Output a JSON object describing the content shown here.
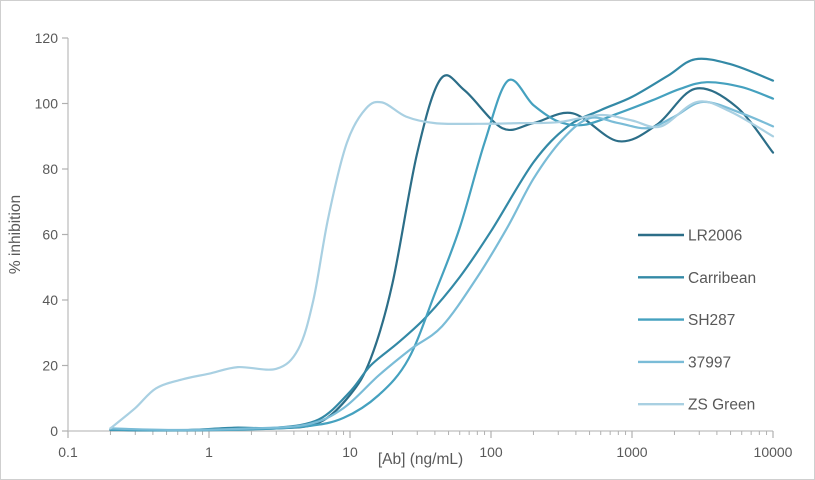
{
  "chart_data": {
    "type": "line",
    "title": "",
    "xlabel": "[Ab] (ng/mL)",
    "ylabel": "% inhibition",
    "x_scale": "log",
    "xlim": [
      0.1,
      10000
    ],
    "ylim": [
      0,
      120
    ],
    "x_ticks": [
      0.1,
      1,
      10,
      100,
      1000,
      10000
    ],
    "x_tick_labels": [
      "0.1",
      "1",
      "10",
      "100",
      "1000",
      "10000"
    ],
    "y_ticks": [
      0,
      20,
      40,
      60,
      80,
      100,
      120
    ],
    "y_tick_labels": [
      "0",
      "20",
      "40",
      "60",
      "80",
      "100",
      "120"
    ],
    "grid": false,
    "legend_position": "inside-right",
    "line_style": "smooth",
    "series": [
      {
        "name": "LR2006",
        "color": "#2c6e88",
        "points": [
          [
            0.2,
            0.3
          ],
          [
            0.6,
            0.2
          ],
          [
            1.5,
            0.8
          ],
          [
            3,
            0.8
          ],
          [
            6,
            2.5
          ],
          [
            10,
            11
          ],
          [
            14,
            22
          ],
          [
            20,
            45
          ],
          [
            30,
            85
          ],
          [
            44,
            107.5
          ],
          [
            65,
            104
          ],
          [
            120,
            92.5
          ],
          [
            200,
            94
          ],
          [
            380,
            97
          ],
          [
            800,
            88.5
          ],
          [
            1500,
            93.5
          ],
          [
            2800,
            104.5
          ],
          [
            5500,
            99
          ],
          [
            10000,
            85
          ]
        ]
      },
      {
        "name": "Carribean",
        "color": "#3389a6",
        "points": [
          [
            0.2,
            0.4
          ],
          [
            0.6,
            0.2
          ],
          [
            1.5,
            1
          ],
          [
            3,
            1
          ],
          [
            6,
            3.5
          ],
          [
            10,
            12
          ],
          [
            14,
            20
          ],
          [
            22,
            27
          ],
          [
            35,
            35
          ],
          [
            60,
            47
          ],
          [
            100,
            61
          ],
          [
            200,
            82
          ],
          [
            350,
            93
          ],
          [
            600,
            98
          ],
          [
            1000,
            102
          ],
          [
            1800,
            108.5
          ],
          [
            2800,
            113.5
          ],
          [
            5000,
            112
          ],
          [
            10000,
            107
          ]
        ]
      },
      {
        "name": "SH287",
        "color": "#45a1bf",
        "points": [
          [
            0.2,
            0.4
          ],
          [
            0.6,
            0.2
          ],
          [
            2,
            0.5
          ],
          [
            5,
            1.5
          ],
          [
            9,
            4
          ],
          [
            16,
            11
          ],
          [
            26,
            22
          ],
          [
            40,
            42
          ],
          [
            60,
            62
          ],
          [
            90,
            88
          ],
          [
            132,
            107
          ],
          [
            200,
            99.5
          ],
          [
            300,
            94.5
          ],
          [
            460,
            93.5
          ],
          [
            800,
            97
          ],
          [
            1400,
            101
          ],
          [
            2200,
            104.5
          ],
          [
            3400,
            106.5
          ],
          [
            6000,
            105
          ],
          [
            10000,
            101.5
          ]
        ]
      },
      {
        "name": "37997",
        "color": "#7abcd7",
        "points": [
          [
            0.2,
            0.8
          ],
          [
            0.6,
            0.3
          ],
          [
            2,
            0.8
          ],
          [
            5,
            2
          ],
          [
            9,
            7
          ],
          [
            16,
            17
          ],
          [
            27,
            25
          ],
          [
            45,
            32
          ],
          [
            80,
            47
          ],
          [
            130,
            62
          ],
          [
            200,
            77
          ],
          [
            320,
            89
          ],
          [
            500,
            95.5
          ],
          [
            800,
            94
          ],
          [
            1300,
            92.5
          ],
          [
            2000,
            96
          ],
          [
            3200,
            100.5
          ],
          [
            6000,
            97
          ],
          [
            10000,
            93
          ]
        ]
      },
      {
        "name": "ZS Green",
        "color": "#a9d0e2",
        "points": [
          [
            0.2,
            0.8
          ],
          [
            0.3,
            7
          ],
          [
            0.42,
            13
          ],
          [
            0.65,
            15.8
          ],
          [
            1,
            17.5
          ],
          [
            1.6,
            19.5
          ],
          [
            3,
            19
          ],
          [
            4.3,
            25
          ],
          [
            5.5,
            40
          ],
          [
            7,
            65
          ],
          [
            9.5,
            88
          ],
          [
            13,
            98.5
          ],
          [
            17,
            100.3
          ],
          [
            25,
            96
          ],
          [
            40,
            94
          ],
          [
            80,
            93.8
          ],
          [
            160,
            94
          ],
          [
            300,
            94.3
          ],
          [
            600,
            96.5
          ],
          [
            1000,
            94.8
          ],
          [
            1600,
            93
          ],
          [
            2900,
            100.5
          ],
          [
            5000,
            97.5
          ],
          [
            10000,
            90
          ]
        ]
      }
    ]
  },
  "styles": {
    "background": "#ffffff",
    "frame_border_color": "#cfcfcf",
    "axis_color": "#bfbfbf",
    "tick_color": "#b0b0b0",
    "label_color": "#595959",
    "line_width": 2.2
  }
}
